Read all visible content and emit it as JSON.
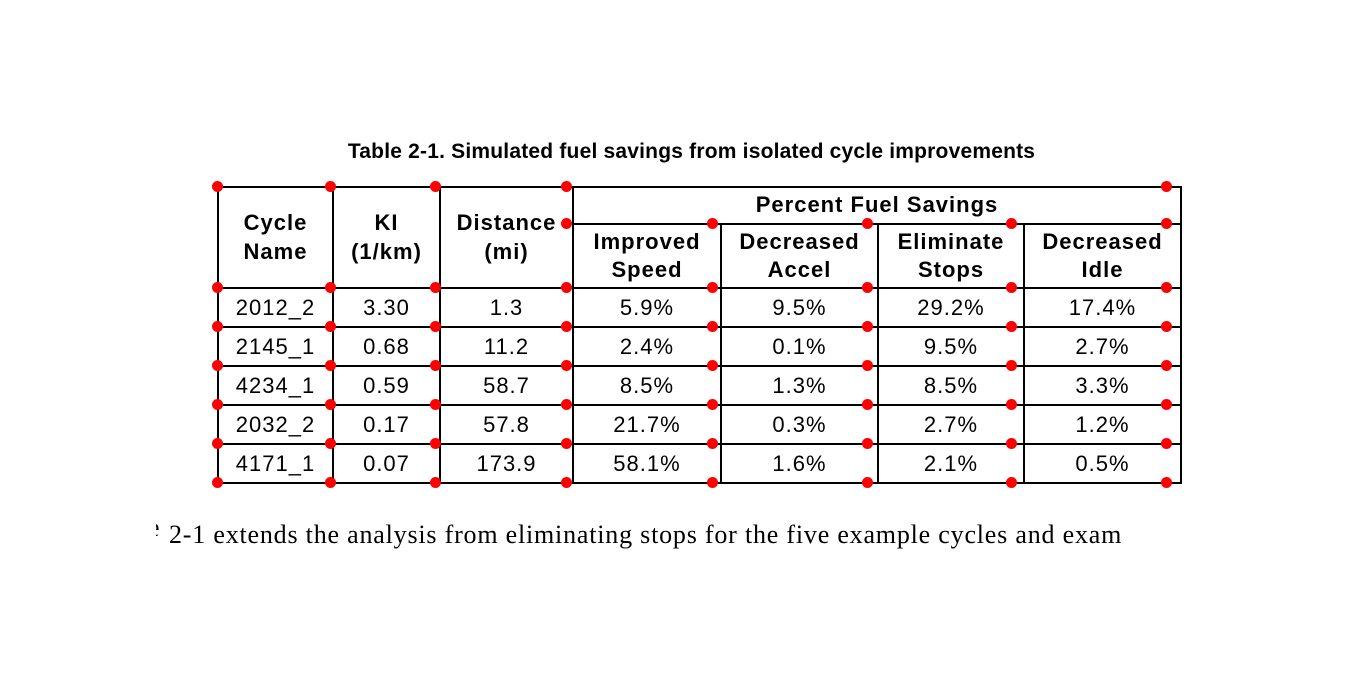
{
  "caption": "Table 2-1. Simulated fuel savings from isolated cycle improvements",
  "table": {
    "group_header": "Percent Fuel Savings",
    "headers": [
      "Cycle\nName",
      "KI\n(1/km)",
      "Distance\n(mi)",
      "Improved\nSpeed",
      "Decreased\nAccel",
      "Eliminate\nStops",
      "Decreased\nIdle"
    ],
    "rows": [
      {
        "cells": [
          "2012_2",
          "3.30",
          "1.3",
          "5.9%",
          "9.5%",
          "29.2%",
          "17.4%"
        ]
      },
      {
        "cells": [
          "2145_1",
          "0.68",
          "11.2",
          "2.4%",
          "0.1%",
          "9.5%",
          "2.7%"
        ]
      },
      {
        "cells": [
          "4234_1",
          "0.59",
          "58.7",
          "8.5%",
          "1.3%",
          "8.5%",
          "3.3%"
        ]
      },
      {
        "cells": [
          "2032_2",
          "0.17",
          "57.8",
          "21.7%",
          "0.3%",
          "2.7%",
          "1.2%"
        ]
      },
      {
        "cells": [
          "4171_1",
          "0.07",
          "173.9",
          "58.1%",
          "1.6%",
          "2.1%",
          "0.5%"
        ]
      }
    ]
  },
  "annotation": {
    "marker": "cell-corner-dot",
    "dot_color": "#ff0000"
  },
  "paragraph": {
    "clipped_char": "e",
    "text": "2-1 extends the analysis from eliminating stops for the five example cycles and exam"
  },
  "colors": {
    "background": "#ffffff",
    "grid_line": "#000000",
    "text": "#000000",
    "dot": "#ff0000"
  }
}
